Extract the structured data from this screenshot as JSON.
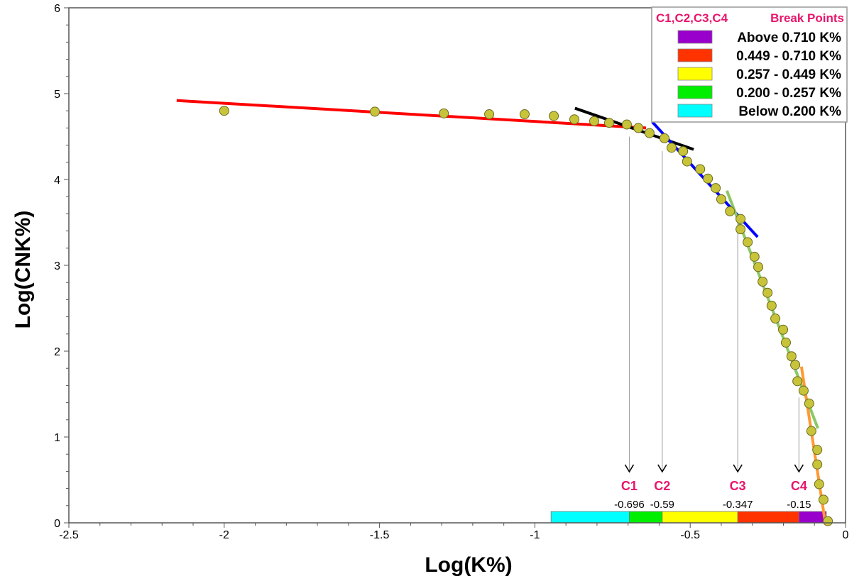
{
  "chart_data": {
    "type": "scatter",
    "xlabel": "Log(K%)",
    "ylabel": "Log(CNK%)",
    "xlim": [
      -2.5,
      0
    ],
    "ylim": [
      0,
      6
    ],
    "xticks": [
      -2.5,
      -2,
      -1.5,
      -1,
      -0.5,
      0
    ],
    "xtick_labels": [
      "-2.5",
      "-2",
      "-1.5",
      "-1",
      "-0.5",
      "0"
    ],
    "yticks": [
      0,
      1,
      2,
      3,
      4,
      5,
      6
    ],
    "ytick_labels": [
      "0",
      "1",
      "2",
      "3",
      "4",
      "5",
      "6"
    ],
    "points": {
      "color": "#c8c43a",
      "x": [
        -2.0,
        -1.515,
        -1.293,
        -1.147,
        -1.033,
        -0.939,
        -0.873,
        -0.809,
        -0.761,
        -0.704,
        -0.667,
        -0.631,
        -0.583,
        -0.56,
        -0.523,
        -0.51,
        -0.468,
        -0.443,
        -0.418,
        -0.4,
        -0.372,
        -0.338,
        -0.338,
        -0.315,
        -0.293,
        -0.281,
        -0.267,
        -0.251,
        -0.238,
        -0.226,
        -0.201,
        -0.192,
        -0.174,
        -0.162,
        -0.155,
        -0.135,
        -0.117,
        -0.11,
        -0.091,
        -0.091,
        -0.085,
        -0.071,
        -0.057
      ],
      "y": [
        4.8,
        4.79,
        4.77,
        4.76,
        4.76,
        4.74,
        4.7,
        4.68,
        4.66,
        4.64,
        4.6,
        4.54,
        4.48,
        4.37,
        4.33,
        4.21,
        4.12,
        4.01,
        3.9,
        3.77,
        3.63,
        3.54,
        3.42,
        3.27,
        3.1,
        2.98,
        2.81,
        2.68,
        2.53,
        2.38,
        2.25,
        2.1,
        1.94,
        1.84,
        1.65,
        1.54,
        1.39,
        1.07,
        0.85,
        0.68,
        0.45,
        0.27,
        0.02
      ]
    },
    "fit_lines": [
      {
        "name": "red",
        "color": "#ff0000",
        "x": [
          -2.153,
          -0.642
        ],
        "y": [
          4.92,
          4.6
        ]
      },
      {
        "name": "black",
        "color": "#000000",
        "x": [
          -0.871,
          -0.489
        ],
        "y": [
          4.83,
          4.35
        ]
      },
      {
        "name": "blue",
        "color": "#0000ff",
        "x": [
          -0.622,
          -0.283
        ],
        "y": [
          4.67,
          3.33
        ]
      },
      {
        "name": "green",
        "color": "#8cc864",
        "x": [
          -0.382,
          -0.089
        ],
        "y": [
          3.87,
          1.1
        ]
      },
      {
        "name": "orange",
        "color": "#ff9933",
        "x": [
          -0.142,
          -0.066
        ],
        "y": [
          1.82,
          0.02
        ]
      }
    ],
    "break_points": [
      {
        "label": "C1",
        "value": -0.696,
        "value_text": "-0.696",
        "line_top": 4.5
      },
      {
        "label": "C2",
        "value": -0.59,
        "value_text": "-0.59",
        "line_top": 4.33
      },
      {
        "label": "C3",
        "value": -0.347,
        "value_text": "-0.347",
        "line_top": 3.6
      },
      {
        "label": "C4",
        "value": -0.15,
        "value_text": "-0.15",
        "line_top": 1.46
      }
    ],
    "bar_segments": [
      {
        "from": -0.948,
        "to": -0.696,
        "color": "#00ffff"
      },
      {
        "from": -0.696,
        "to": -0.59,
        "color": "#00ee00"
      },
      {
        "from": -0.59,
        "to": -0.347,
        "color": "#ffff00"
      },
      {
        "from": -0.347,
        "to": -0.15,
        "color": "#ff3300"
      },
      {
        "from": -0.15,
        "to": -0.062,
        "color": "#9900cc"
      }
    ],
    "legend": {
      "placement": "top-right",
      "title_left": "C1,C2,C3,C4",
      "title_right": "Break Points",
      "entries": [
        {
          "label": "Above 0.710 K%",
          "color": "#9900cc"
        },
        {
          "label": "0.449 - 0.710 K%",
          "color": "#ff3300"
        },
        {
          "label": "0.257 - 0.449 K%",
          "color": "#ffff00"
        },
        {
          "label": "0.200 - 0.257 K%",
          "color": "#00ee00"
        },
        {
          "label": "Below 0.200 K%",
          "color": "#00ffff"
        }
      ]
    }
  }
}
